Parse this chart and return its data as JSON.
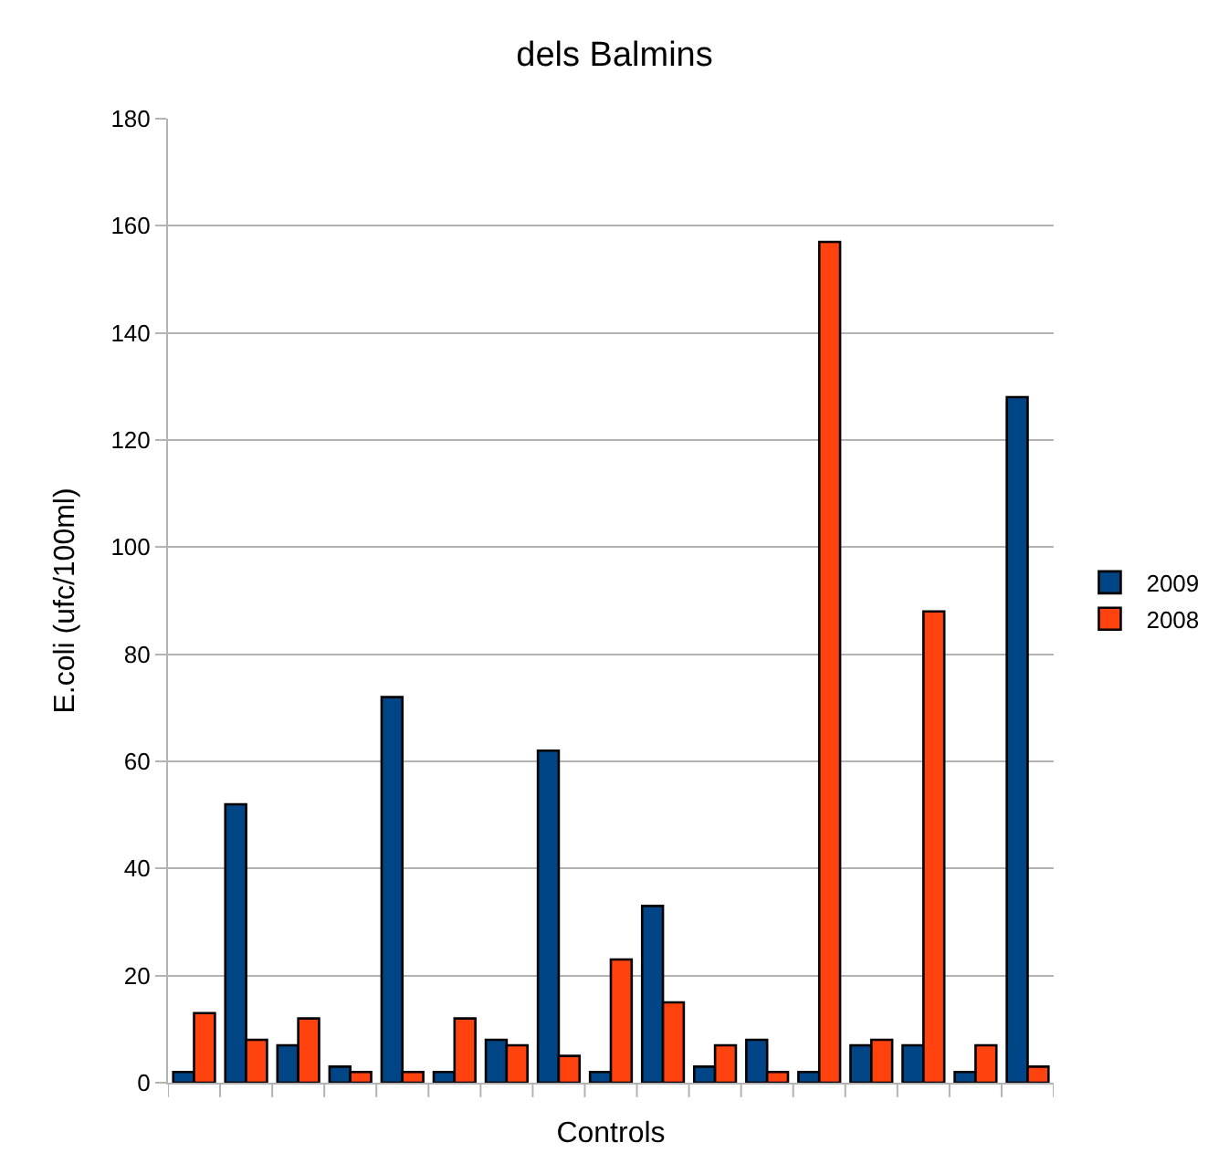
{
  "chart_data": {
    "type": "bar",
    "title": "dels Balmins",
    "xlabel": "Controls",
    "ylabel": "E.coli (ufc/100ml)",
    "categories": [
      null,
      null,
      null,
      null,
      null,
      null,
      null,
      null,
      null,
      null,
      null,
      null,
      null,
      null,
      null,
      null,
      null
    ],
    "series": [
      {
        "name": "2009",
        "color": "#004586",
        "values": [
          2,
          52,
          7,
          3,
          72,
          2,
          8,
          62,
          2,
          33,
          3,
          8,
          2,
          7,
          7,
          2,
          128
        ]
      },
      {
        "name": "2008",
        "color": "#ff420e",
        "values": [
          13,
          8,
          12,
          2,
          2,
          12,
          7,
          5,
          23,
          15,
          7,
          2,
          157,
          8,
          88,
          7,
          3
        ]
      }
    ],
    "ylim": [
      0,
      180
    ],
    "yticks": [
      0,
      20,
      40,
      60,
      80,
      100,
      120,
      140,
      160,
      180
    ],
    "grid": "y",
    "legend": "right"
  }
}
